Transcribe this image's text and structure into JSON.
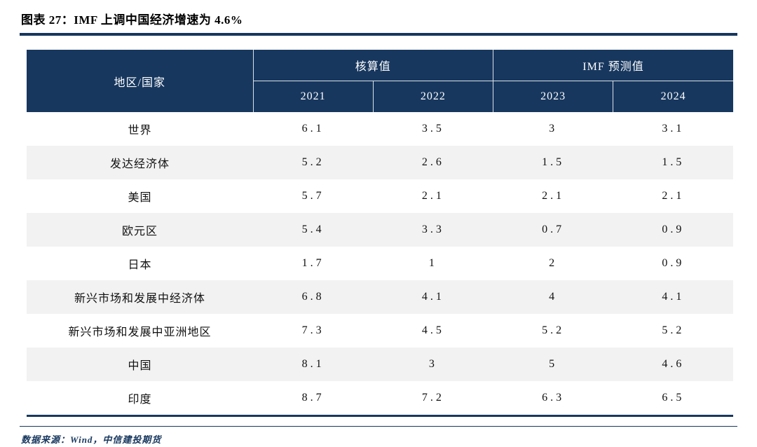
{
  "figure": {
    "title": "图表 27：IMF 上调中国经济增速为 4.6%",
    "source": "数据来源：Wind，中信建投期货"
  },
  "colors": {
    "header_bg": "#17375E",
    "accent_rule": "#17375E",
    "alt_row_bg": "#F2F2F2",
    "header_text": "#FFFFFF",
    "body_text": "#111111"
  },
  "table": {
    "region_header": "地区/国家",
    "group_headers": [
      "核算值",
      "IMF 预测值"
    ],
    "year_headers": [
      "2021",
      "2022",
      "2023",
      "2024"
    ],
    "rows": [
      {
        "region": "世界",
        "values": [
          "6.1",
          "3.5",
          "3",
          "3.1"
        ]
      },
      {
        "region": "发达经济体",
        "values": [
          "5.2",
          "2.6",
          "1.5",
          "1.5"
        ]
      },
      {
        "region": "美国",
        "values": [
          "5.7",
          "2.1",
          "2.1",
          "2.1"
        ]
      },
      {
        "region": "欧元区",
        "values": [
          "5.4",
          "3.3",
          "0.7",
          "0.9"
        ]
      },
      {
        "region": "日本",
        "values": [
          "1.7",
          "1",
          "2",
          "0.9"
        ]
      },
      {
        "region": "新兴市场和发展中经济体",
        "values": [
          "6.8",
          "4.1",
          "4",
          "4.1"
        ]
      },
      {
        "region": "新兴市场和发展中亚洲地区",
        "values": [
          "7.3",
          "4.5",
          "5.2",
          "5.2"
        ]
      },
      {
        "region": "中国",
        "values": [
          "8.1",
          "3",
          "5",
          "4.6"
        ]
      },
      {
        "region": "印度",
        "values": [
          "8.7",
          "7.2",
          "6.3",
          "6.5"
        ]
      }
    ]
  },
  "chart_data": {
    "type": "table",
    "title": "图表 27：IMF 上调中国经济增速为 4.6%",
    "columns": [
      "地区/国家",
      "2021",
      "2022",
      "2023",
      "2024"
    ],
    "column_groups": [
      {
        "label": "核算值",
        "columns": [
          "2021",
          "2022"
        ]
      },
      {
        "label": "IMF 预测值",
        "columns": [
          "2023",
          "2024"
        ]
      }
    ],
    "rows": [
      [
        "世界",
        6.1,
        3.5,
        3,
        3.1
      ],
      [
        "发达经济体",
        5.2,
        2.6,
        1.5,
        1.5
      ],
      [
        "美国",
        5.7,
        2.1,
        2.1,
        2.1
      ],
      [
        "欧元区",
        5.4,
        3.3,
        0.7,
        0.9
      ],
      [
        "日本",
        1.7,
        1,
        2,
        0.9
      ],
      [
        "新兴市场和发展中经济体",
        6.8,
        4.1,
        4,
        4.1
      ],
      [
        "新兴市场和发展中亚洲地区",
        7.3,
        4.5,
        5.2,
        5.2
      ],
      [
        "中国",
        8.1,
        3,
        5,
        4.6
      ],
      [
        "印度",
        8.7,
        7.2,
        6.3,
        6.5
      ]
    ],
    "source": "数据来源：Wind，中信建投期货"
  }
}
